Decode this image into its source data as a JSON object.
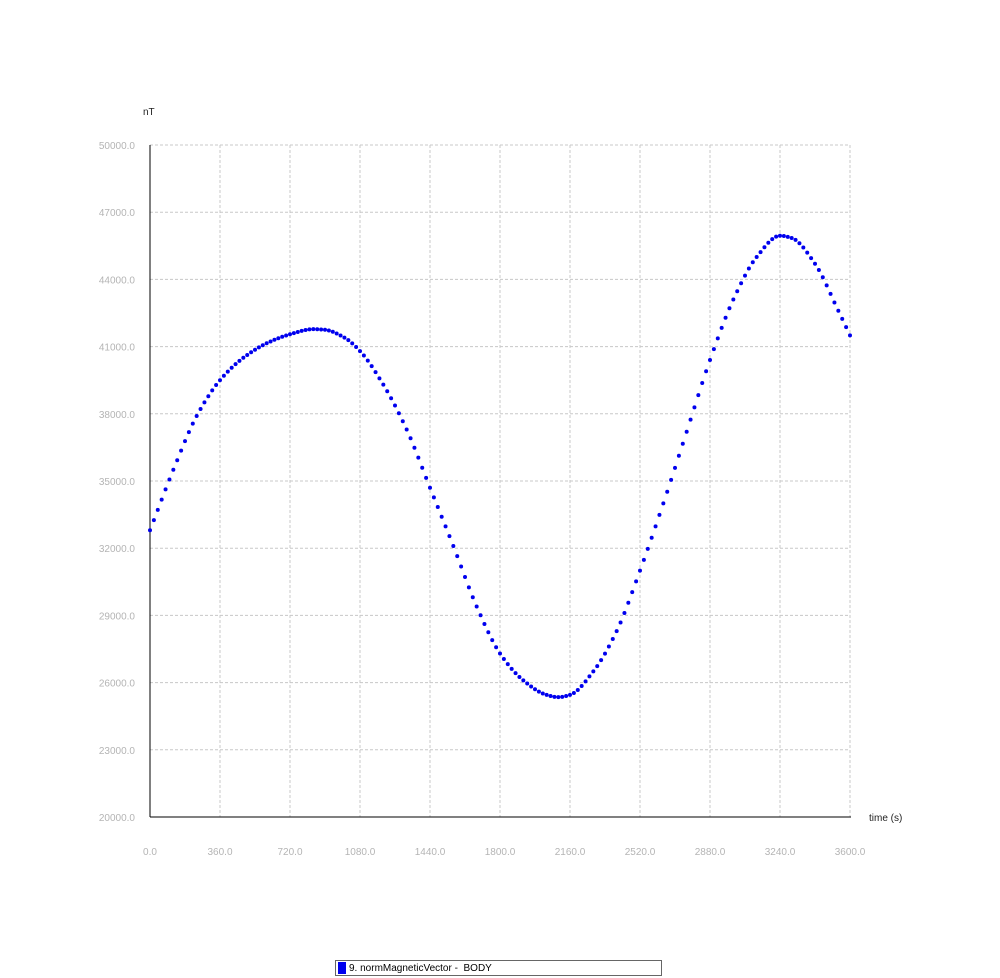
{
  "chart_data": {
    "type": "scatter",
    "ylabel": "nT",
    "xlabel": "time (s)",
    "xlim": [
      0,
      3600
    ],
    "ylim": [
      20000,
      50000
    ],
    "xticks": [
      "0.0",
      "360.0",
      "720.0",
      "1080.0",
      "1440.0",
      "1800.0",
      "2160.0",
      "2520.0",
      "2880.0",
      "3240.0",
      "3600.0"
    ],
    "yticks": [
      "20000.0",
      "23000.0",
      "26000.0",
      "29000.0",
      "32000.0",
      "35000.0",
      "38000.0",
      "41000.0",
      "44000.0",
      "47000.0",
      "50000.0"
    ],
    "grid": true,
    "legend_position": "bottom-center",
    "series": [
      {
        "name": "9. normMagneticVector -  BODY",
        "color": "#0000ee",
        "anchors": [
          [
            0,
            32800
          ],
          [
            120,
            35500
          ],
          [
            240,
            37900
          ],
          [
            360,
            39500
          ],
          [
            480,
            40500
          ],
          [
            600,
            41150
          ],
          [
            720,
            41550
          ],
          [
            840,
            41780
          ],
          [
            900,
            41750
          ],
          [
            1000,
            41400
          ],
          [
            1080,
            40800
          ],
          [
            1200,
            39300
          ],
          [
            1320,
            37300
          ],
          [
            1440,
            34700
          ],
          [
            1560,
            32100
          ],
          [
            1680,
            29400
          ],
          [
            1800,
            27300
          ],
          [
            1920,
            26100
          ],
          [
            2040,
            25450
          ],
          [
            2100,
            25350
          ],
          [
            2160,
            25450
          ],
          [
            2280,
            26500
          ],
          [
            2400,
            28300
          ],
          [
            2520,
            31000
          ],
          [
            2640,
            34000
          ],
          [
            2760,
            37200
          ],
          [
            2880,
            40400
          ],
          [
            3000,
            43100
          ],
          [
            3120,
            45000
          ],
          [
            3240,
            45950
          ],
          [
            3300,
            45850
          ],
          [
            3420,
            44700
          ],
          [
            3540,
            42600
          ],
          [
            3600,
            41500
          ]
        ]
      }
    ]
  }
}
